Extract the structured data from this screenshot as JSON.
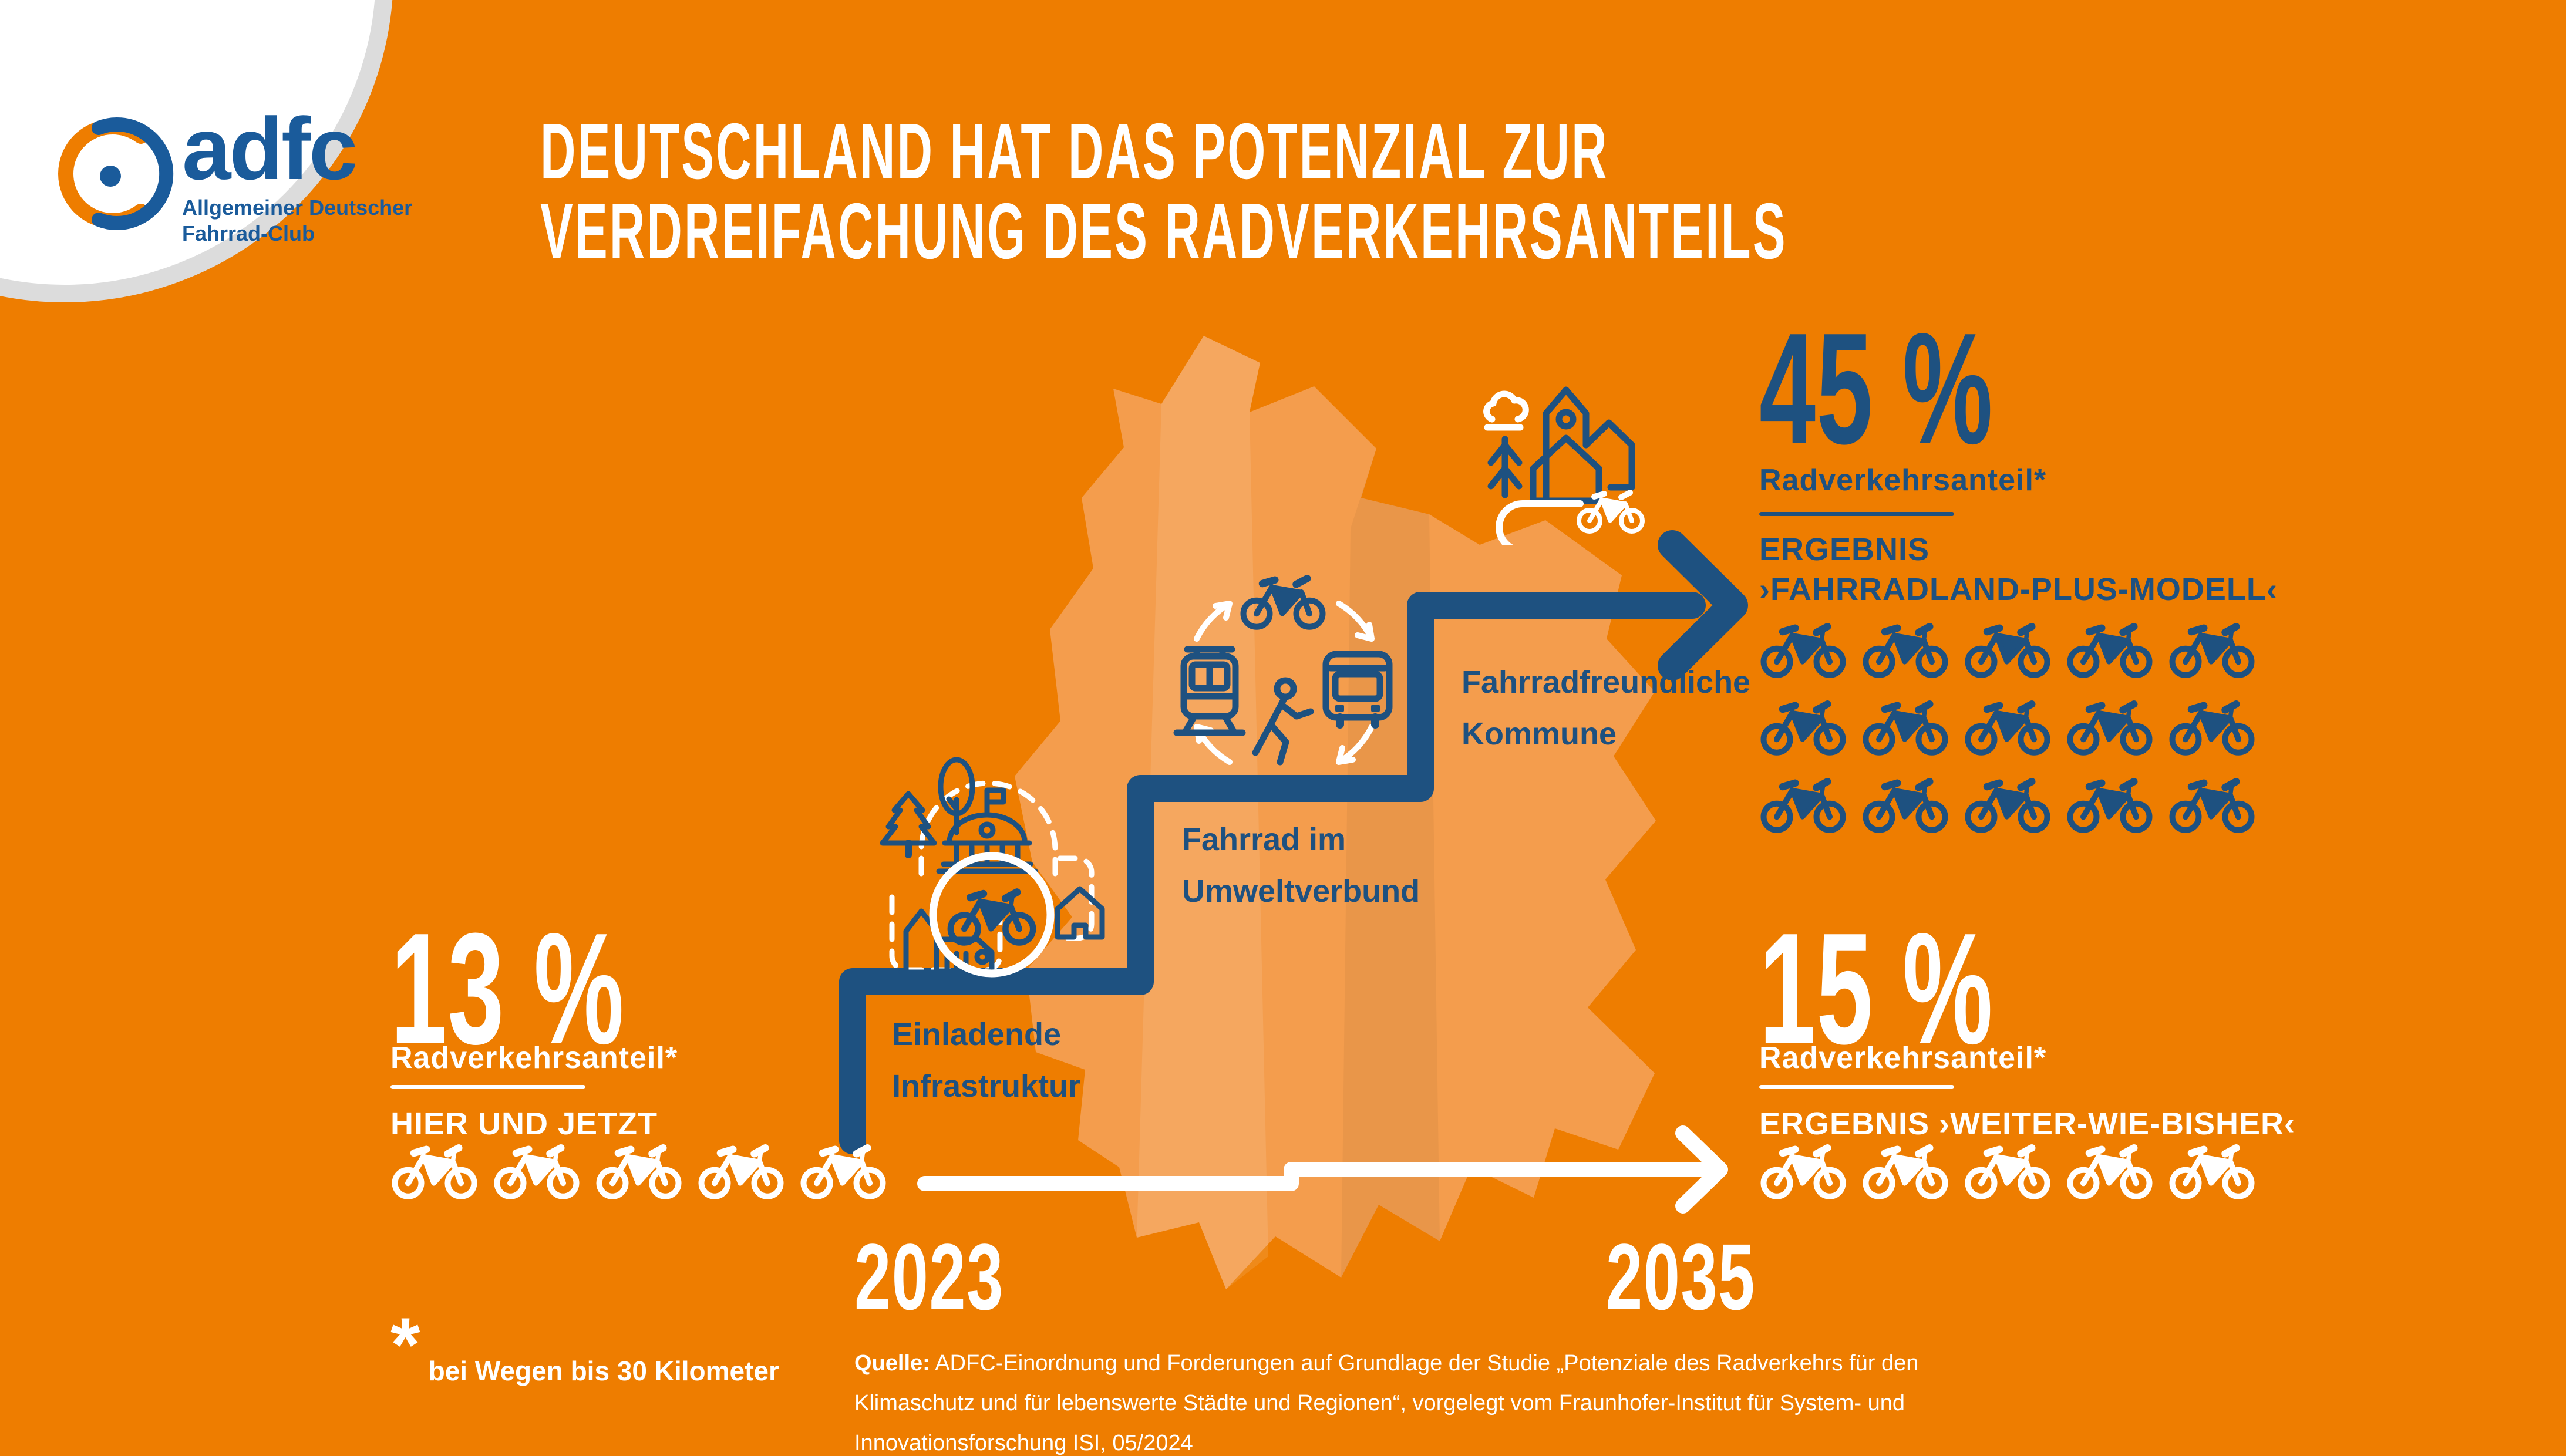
{
  "logo": {
    "brand": "adfc",
    "subtitle_line1": "Allgemeiner Deutscher",
    "subtitle_line2": "Fahrrad-Club"
  },
  "title": {
    "line1": "DEUTSCHLAND HAT DAS POTENZIAL ZUR",
    "line2": "VERDREIFACHUNG DES RADVERKEHRSANTEILS"
  },
  "stats": {
    "current": {
      "value": "13 %",
      "label": "Radverkehrsanteil*",
      "scenario": "HIER UND JETZT",
      "bikes": 5,
      "year": "2023",
      "icon_color": "white"
    },
    "plus_model": {
      "value": "45 %",
      "label": "Radverkehrsanteil*",
      "scenario_line1": "ERGEBNIS",
      "scenario_line2": "›FAHRRADLAND-PLUS-MODELL‹",
      "bikes": 15,
      "year": "2035",
      "icon_color": "navy"
    },
    "business_as_usual": {
      "value": "15 %",
      "label": "Radverkehrsanteil*",
      "scenario": "ERGEBNIS ›WEITER-WIE-BISHER‹",
      "bikes": 5,
      "year": "2035",
      "icon_color": "white"
    }
  },
  "steps": [
    {
      "label_line1": "Einladende",
      "label_line2": "Infrastruktur"
    },
    {
      "label_line1": "Fahrrad im",
      "label_line2": "Umweltverbund"
    },
    {
      "label_line1": "Fahrradfreundliche",
      "label_line2": "Kommune"
    }
  ],
  "timeline": {
    "start": "2023",
    "end": "2035"
  },
  "footnote": {
    "symbol": "*",
    "text": "bei Wegen bis 30 Kilometer"
  },
  "source": {
    "label": "Quelle:",
    "text": " ADFC-Einordnung und Forderungen auf Grundlage der Studie „Potenziale des Radverkehrs für den Klimaschutz und für lebenswerte Städte und Regionen“, vorgelegt vom Fraunhofer-Institut für System- und Innovationsforschung ISI, 05/2024"
  },
  "colors": {
    "background": "#EE7D00",
    "map_fill": "#F49D4D",
    "navy": "#1E5180",
    "white": "#FFFFFF",
    "logo_blue": "#1A5B9B",
    "logo_ring_gray": "#DCDCDC"
  },
  "icon_names": [
    "adfc-wheel-icon",
    "germany-map",
    "step-arrow",
    "timeline-arrow",
    "bike-icon",
    "inviting-infrastructure-icon",
    "eco-mobility-cycle-icon",
    "bike-friendly-community-icon"
  ],
  "chart_data": {
    "type": "table",
    "title": "Deutschland hat das Potenzial zur Verdreifachung des Radverkehrsanteils",
    "rows": [
      {
        "scenario": "HIER UND JETZT",
        "year": 2023,
        "radverkehrsanteil_percent": 13,
        "bike_pictograms": 5,
        "pictogram_color": "white"
      },
      {
        "scenario": "ERGEBNIS ›WEITER-WIE-BISHER‹",
        "year": 2035,
        "radverkehrsanteil_percent": 15,
        "bike_pictograms": 5,
        "pictogram_color": "white"
      },
      {
        "scenario": "ERGEBNIS ›FAHRRADLAND-PLUS-MODELL‹",
        "year": 2035,
        "radverkehrsanteil_percent": 45,
        "bike_pictograms": 15,
        "pictogram_color": "navy"
      }
    ],
    "steps_to_target": [
      "Einladende Infrastruktur",
      "Fahrrad im Umweltverbund",
      "Fahrradfreundliche Kommune"
    ],
    "x_axis": {
      "start": 2023,
      "end": 2035
    },
    "footnote": "bei Wegen bis 30 Kilometer",
    "source": "ADFC / Fraunhofer ISI, 05/2024"
  }
}
